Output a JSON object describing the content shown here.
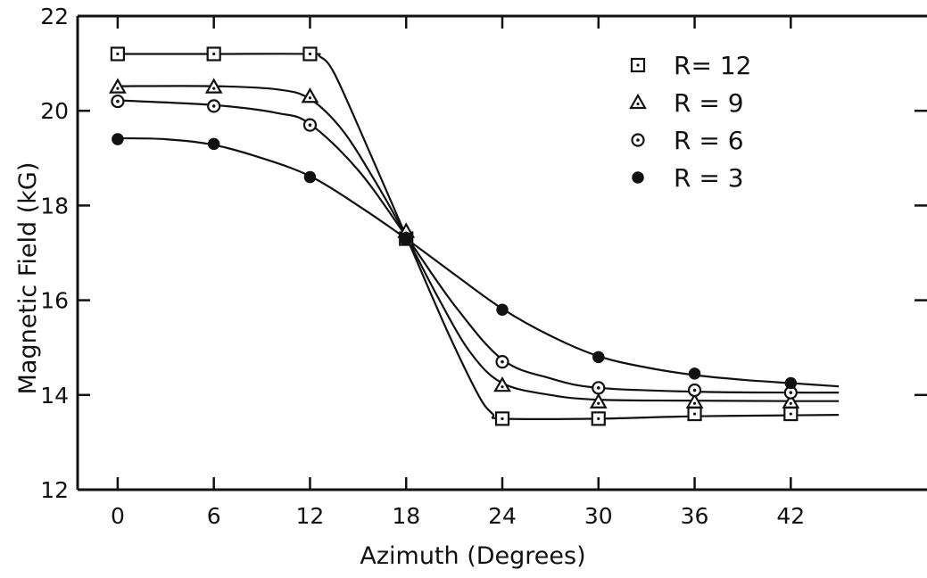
{
  "chart_data": {
    "type": "scatter",
    "xlabel": "Azimuth (Degrees)",
    "ylabel": "Magnetic Field (kG)",
    "x_ticks": [
      0,
      6,
      12,
      18,
      24,
      30,
      36,
      42
    ],
    "y_ticks": [
      12,
      14,
      16,
      18,
      20,
      22
    ],
    "xlim": [
      -2.5,
      50.5
    ],
    "ylim": [
      12,
      22
    ],
    "grid": false,
    "legend_position": "top-right",
    "series": [
      {
        "name": "R= 12",
        "marker": "square",
        "x": [
          0,
          6,
          12,
          18,
          24,
          30,
          36,
          42
        ],
        "y": [
          21.2,
          21.2,
          21.2,
          17.3,
          13.5,
          13.5,
          13.6,
          13.6
        ],
        "curve_x": [
          0,
          6,
          12,
          12.6,
          13.5,
          15.5,
          18,
          20.5,
          22.5,
          23.4,
          24,
          30,
          36,
          42,
          45
        ],
        "curve_y": [
          21.2,
          21.2,
          21.2,
          21.15,
          20.8,
          19.3,
          17.35,
          15.4,
          14.0,
          13.6,
          13.5,
          13.5,
          13.55,
          13.57,
          13.58
        ]
      },
      {
        "name": "R = 9",
        "marker": "triangle",
        "x": [
          0,
          6,
          12,
          18,
          24,
          30,
          36,
          42
        ],
        "y": [
          20.5,
          20.5,
          20.3,
          17.45,
          14.2,
          13.85,
          13.85,
          13.85
        ],
        "curve_x": [
          0,
          6,
          10,
          12,
          14,
          16,
          18,
          20,
          22,
          24,
          27,
          30,
          36,
          42,
          45
        ],
        "curve_y": [
          20.52,
          20.52,
          20.45,
          20.25,
          19.6,
          18.55,
          17.35,
          16.05,
          14.9,
          14.25,
          14.0,
          13.9,
          13.88,
          13.87,
          13.87
        ]
      },
      {
        "name": "R = 6",
        "marker": "circle",
        "x": [
          0,
          6,
          12,
          18,
          24,
          30,
          36,
          42
        ],
        "y": [
          20.2,
          20.1,
          19.7,
          17.3,
          14.7,
          14.15,
          14.1,
          14.05
        ],
        "curve_x": [
          0,
          6,
          10,
          12,
          15,
          18,
          21,
          24,
          27,
          30,
          36,
          42,
          45
        ],
        "curve_y": [
          20.22,
          20.12,
          19.95,
          19.72,
          18.75,
          17.35,
          15.9,
          14.75,
          14.35,
          14.15,
          14.07,
          14.05,
          14.05
        ]
      },
      {
        "name": "R = 3",
        "marker": "filled-circle",
        "x": [
          0,
          6,
          12,
          18,
          24,
          30,
          36,
          42
        ],
        "y": [
          19.4,
          19.3,
          18.6,
          17.3,
          15.8,
          14.8,
          14.45,
          14.25
        ],
        "curve_x": [
          0,
          3,
          6,
          9,
          12,
          15,
          18,
          21,
          24,
          27,
          30,
          33,
          36,
          39,
          42,
          45
        ],
        "curve_y": [
          19.42,
          19.4,
          19.28,
          19.0,
          18.62,
          18.0,
          17.3,
          16.55,
          15.82,
          15.25,
          14.82,
          14.58,
          14.42,
          14.32,
          14.25,
          14.18
        ]
      }
    ]
  }
}
